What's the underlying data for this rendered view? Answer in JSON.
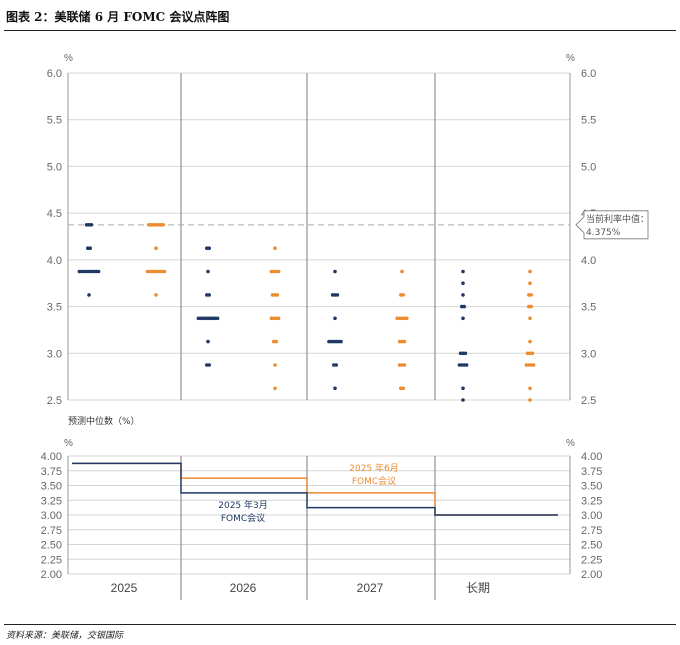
{
  "figure": {
    "title": "图表 2：美联储 6 月 FOMC 会议点阵图",
    "source": "资料来源：美联储，交银国际"
  },
  "colors": {
    "march": "#1f3864",
    "june": "#ed8b2f",
    "grid": "#d4d4d4",
    "axis": "#999999",
    "divider": "#9a9a9a"
  },
  "chart_data": [
    {
      "type": "scatter",
      "name_hint": "dot-plot",
      "unit_left": "%",
      "unit_right": "%",
      "ylim": [
        2.5,
        6.0
      ],
      "yticks": [
        "2.5",
        "3.0",
        "3.5",
        "4.0",
        "4.5",
        "5.0",
        "5.5",
        "6.0"
      ],
      "grid": true,
      "categories": [
        "2025",
        "2026",
        "2027",
        "长期"
      ],
      "current_rate": 4.375,
      "current_rate_label": "当前利率中值：4.375%",
      "series": [
        {
          "key": "march",
          "dots": [
            [
              [
                4.375,
                3
              ],
              [
                4.125,
                2
              ],
              [
                3.875,
                9
              ],
              [
                3.625,
                1
              ]
            ],
            [
              [
                4.125,
                2
              ],
              [
                3.875,
                1
              ],
              [
                3.625,
                2
              ],
              [
                3.375,
                9
              ],
              [
                3.125,
                1
              ],
              [
                2.875,
                2
              ]
            ],
            [
              [
                3.875,
                1
              ],
              [
                3.625,
                3
              ],
              [
                3.375,
                1
              ],
              [
                3.125,
                6
              ],
              [
                2.875,
                2
              ],
              [
                2.625,
                1
              ]
            ],
            [
              [
                3.875,
                1
              ],
              [
                3.75,
                1
              ],
              [
                3.625,
                1
              ],
              [
                3.5,
                2
              ],
              [
                3.375,
                1
              ],
              [
                3.0,
                3
              ],
              [
                2.875,
                4
              ],
              [
                2.625,
                1
              ],
              [
                2.5,
                1
              ]
            ]
          ]
        },
        {
          "key": "june",
          "dots": [
            [
              [
                4.375,
                7
              ],
              [
                4.125,
                1
              ],
              [
                3.875,
                8
              ],
              [
                3.625,
                1
              ]
            ],
            [
              [
                4.125,
                1
              ],
              [
                3.875,
                4
              ],
              [
                3.625,
                3
              ],
              [
                3.375,
                4
              ],
              [
                3.125,
                2
              ],
              [
                2.875,
                1
              ],
              [
                2.625,
                1
              ]
            ],
            [
              [
                3.875,
                1
              ],
              [
                3.625,
                2
              ],
              [
                3.375,
                5
              ],
              [
                3.125,
                3
              ],
              [
                2.875,
                3
              ],
              [
                2.625,
                2
              ]
            ],
            [
              [
                3.875,
                1
              ],
              [
                3.75,
                1
              ],
              [
                3.625,
                2
              ],
              [
                3.5,
                2
              ],
              [
                3.375,
                1
              ],
              [
                3.125,
                1
              ],
              [
                3.0,
                3
              ],
              [
                2.875,
                4
              ],
              [
                2.625,
                1
              ],
              [
                2.5,
                1
              ]
            ]
          ]
        }
      ]
    },
    {
      "type": "line",
      "name_hint": "median-projections",
      "label": "预测中位数（%）",
      "unit_left": "%",
      "unit_right": "%",
      "ylim": [
        2.0,
        4.0
      ],
      "yticks": [
        "2.00",
        "2.25",
        "2.50",
        "2.75",
        "3.00",
        "3.25",
        "3.50",
        "3.75",
        "4.00"
      ],
      "categories": [
        "2025",
        "2026",
        "2027",
        "长期"
      ],
      "series": [
        {
          "key": "march",
          "name": "2025 年3月\nFOMC会议",
          "values": [
            3.875,
            3.375,
            3.125,
            3.0
          ]
        },
        {
          "key": "june",
          "name": "2025 年6月\nFOMC会议",
          "values": [
            3.875,
            3.625,
            3.375,
            3.0
          ]
        }
      ]
    }
  ]
}
